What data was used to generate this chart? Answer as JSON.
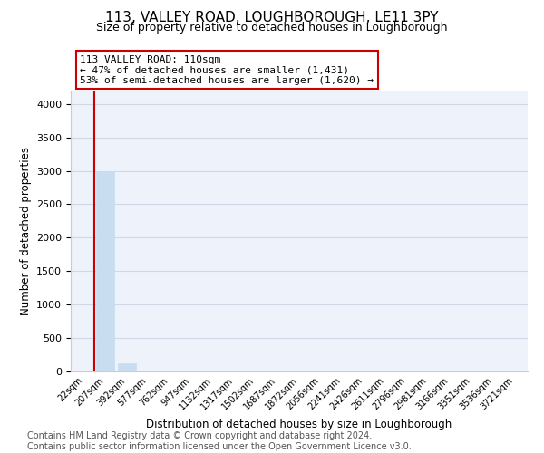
{
  "title": "113, VALLEY ROAD, LOUGHBOROUGH, LE11 3PY",
  "subtitle": "Size of property relative to detached houses in Loughborough",
  "xlabel": "Distribution of detached houses by size in Loughborough",
  "ylabel": "Number of detached properties",
  "bin_labels": [
    "22sqm",
    "207sqm",
    "392sqm",
    "577sqm",
    "762sqm",
    "947sqm",
    "1132sqm",
    "1317sqm",
    "1502sqm",
    "1687sqm",
    "1872sqm",
    "2056sqm",
    "2241sqm",
    "2426sqm",
    "2611sqm",
    "2796sqm",
    "2981sqm",
    "3166sqm",
    "3351sqm",
    "3536sqm",
    "3721sqm"
  ],
  "bar_values": [
    0,
    3000,
    120,
    0,
    0,
    0,
    0,
    0,
    0,
    0,
    0,
    0,
    0,
    0,
    0,
    0,
    0,
    0,
    0,
    0,
    0
  ],
  "bar_color": "#c8ddf0",
  "bar_edge_color": "#c8ddf0",
  "ylim": [
    0,
    4200
  ],
  "yticks": [
    0,
    500,
    1000,
    1500,
    2000,
    2500,
    3000,
    3500,
    4000
  ],
  "annotation_text": "113 VALLEY ROAD: 110sqm\n← 47% of detached houses are smaller (1,431)\n53% of semi-detached houses are larger (1,620) →",
  "annotation_box_color": "#ffffff",
  "annotation_box_edge_color": "#cc0000",
  "red_line_color": "#cc0000",
  "grid_color": "#d0d8e8",
  "background_color": "#eef2fa",
  "footnote": "Contains HM Land Registry data © Crown copyright and database right 2024.\nContains public sector information licensed under the Open Government Licence v3.0.",
  "title_fontsize": 11,
  "subtitle_fontsize": 9,
  "annotation_fontsize": 8,
  "footnote_fontsize": 7
}
